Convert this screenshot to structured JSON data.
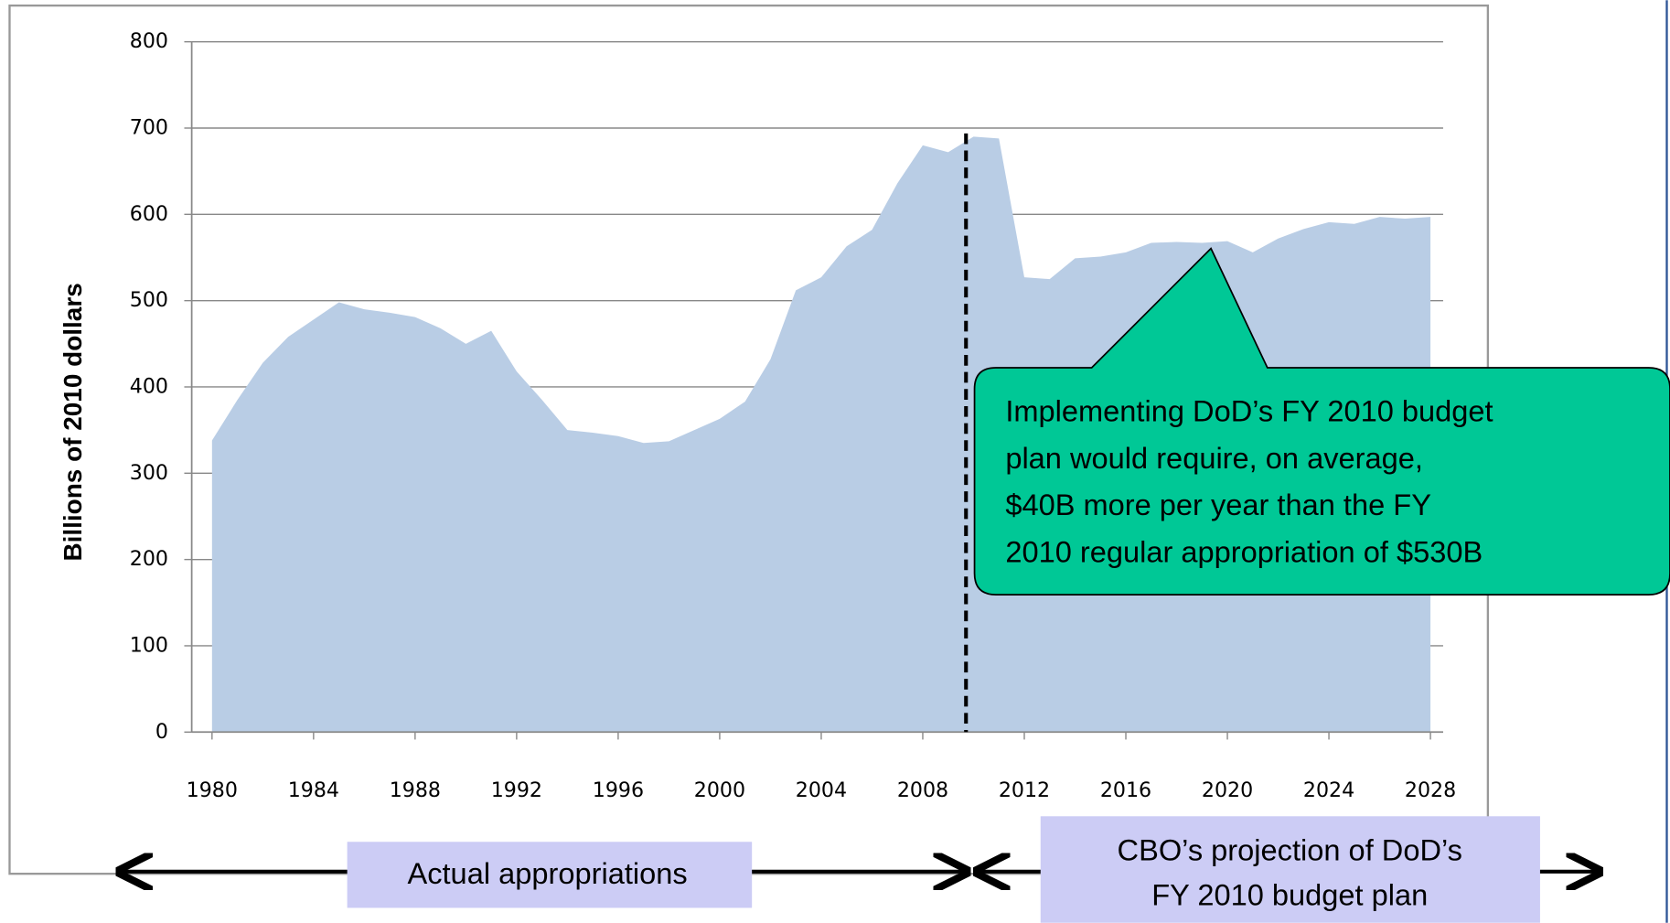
{
  "chart_data": {
    "type": "area",
    "y_label": "Billions of 2010 dollars",
    "x": [
      1980,
      1981,
      1982,
      1983,
      1984,
      1985,
      1986,
      1987,
      1988,
      1989,
      1990,
      1991,
      1992,
      1993,
      1994,
      1995,
      1996,
      1997,
      1998,
      1999,
      2000,
      2001,
      2002,
      2003,
      2004,
      2005,
      2006,
      2007,
      2008,
      2009,
      2010,
      2011,
      2012,
      2013,
      2014,
      2015,
      2016,
      2017,
      2018,
      2019,
      2020,
      2021,
      2022,
      2023,
      2024,
      2025,
      2026,
      2027,
      2028
    ],
    "values": [
      338,
      385,
      428,
      458,
      478,
      498,
      490,
      486,
      481,
      468,
      450,
      465,
      418,
      385,
      350,
      347,
      343,
      335,
      337,
      350,
      363,
      383,
      432,
      512,
      527,
      563,
      582,
      636,
      680,
      672,
      690,
      688,
      527,
      525,
      549,
      551,
      556,
      567,
      568,
      567,
      569,
      556,
      572,
      583,
      591,
      589,
      597,
      595,
      597
    ],
    "color": "#b9cde5",
    "xlim": [
      1979.2,
      2028.5
    ],
    "xticks": [
      1980,
      1984,
      1988,
      1992,
      1996,
      2000,
      2004,
      2008,
      2012,
      2016,
      2020,
      2024,
      2028
    ],
    "ylim": [
      0,
      800
    ],
    "yticks": [
      0,
      100,
      200,
      300,
      400,
      500,
      600,
      700,
      800
    ],
    "grid": true,
    "annotations": {
      "callout": [
        "Implementing DoD’s FY 2010 budget",
        "plan would require, on average,",
        "$40B more per year than the FY",
        "2010 regular appropriation of $530B"
      ],
      "actual": "Actual appropriations",
      "projection": [
        "CBO’s projection of DoD’s",
        "FY 2010 budget plan"
      ]
    }
  }
}
